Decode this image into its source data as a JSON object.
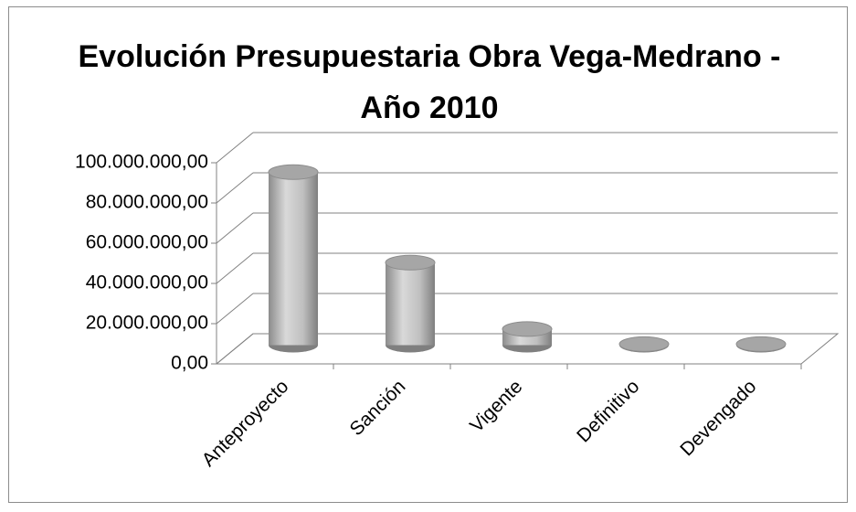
{
  "chart_data": {
    "type": "bar3d",
    "title": "Evolución Presupuestaria Obra Vega-Medrano - Año 2010",
    "categories": [
      "Anteproyecto",
      "Sanción",
      "Vigente",
      "Definitivo",
      "Devengado"
    ],
    "values": [
      86000000,
      41000000,
      8000000,
      500000,
      500000
    ],
    "color": "#a6a6a6",
    "ylim": [
      0,
      100000000
    ],
    "yticks": [
      {
        "value": 0,
        "label": "0,00"
      },
      {
        "value": 20000000,
        "label": "20.000.000,00"
      },
      {
        "value": 40000000,
        "label": "40.000.000,00"
      },
      {
        "value": 60000000,
        "label": "60.000.000,00"
      },
      {
        "value": 80000000,
        "label": "80.000.000,00"
      },
      {
        "value": 100000000,
        "label": "100.000.000,00"
      }
    ],
    "grid": true
  }
}
